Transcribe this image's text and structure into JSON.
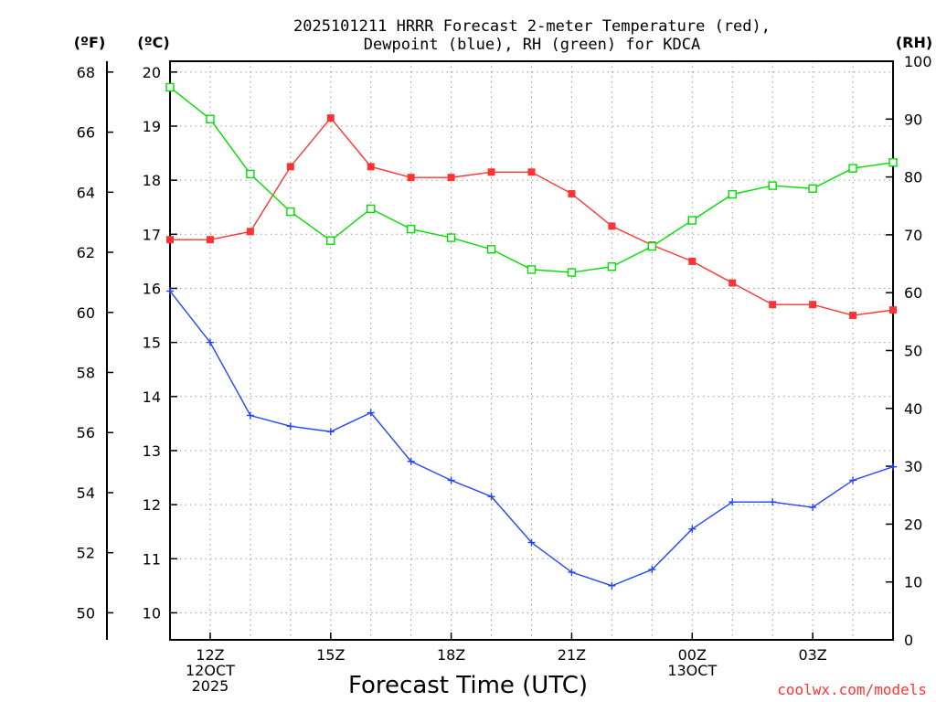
{
  "chart_data": {
    "type": "line",
    "title_line1": "2025101211 HRRR Forecast 2-meter Temperature (red),",
    "title_line2": "Dewpoint (blue), RH (green) for KDCA",
    "xlabel": "Forecast Time (UTC)",
    "credit": "coolwx.com/models",
    "axis_f_label": "(ºF)",
    "axis_c_label": "(ºC)",
    "axis_rh_label": "(RH)",
    "xlim": [
      11,
      29
    ],
    "c_lim": [
      9.5,
      20.2
    ],
    "rh_lim": [
      0,
      100
    ],
    "x_ticks": [
      {
        "x": 12,
        "lines": [
          "12Z",
          "12OCT",
          "2025"
        ]
      },
      {
        "x": 15,
        "lines": [
          "15Z"
        ]
      },
      {
        "x": 18,
        "lines": [
          "18Z"
        ]
      },
      {
        "x": 21,
        "lines": [
          "21Z"
        ]
      },
      {
        "x": 24,
        "lines": [
          "00Z",
          "13OCT"
        ]
      },
      {
        "x": 27,
        "lines": [
          "03Z"
        ]
      }
    ],
    "c_ticks": [
      "10",
      "11",
      "12",
      "13",
      "14",
      "15",
      "16",
      "17",
      "18",
      "19",
      "20"
    ],
    "f_ticks": [
      "50",
      "52",
      "54",
      "56",
      "58",
      "60",
      "62",
      "64",
      "66",
      "68"
    ],
    "rh_ticks": [
      "0",
      "10",
      "20",
      "30",
      "40",
      "50",
      "60",
      "70",
      "80",
      "90",
      "100"
    ],
    "x": [
      11,
      12,
      13,
      14,
      15,
      16,
      17,
      18,
      19,
      20,
      21,
      22,
      23,
      24,
      25,
      26,
      27,
      28,
      29
    ],
    "series": [
      {
        "name": "Temperature",
        "unit": "C",
        "color": "#ff3333",
        "marker": "filled-square",
        "values": [
          16.9,
          16.9,
          17.05,
          18.25,
          19.15,
          18.25,
          18.05,
          18.05,
          18.15,
          18.15,
          17.75,
          17.15,
          16.8,
          16.5,
          16.1,
          15.7,
          15.7,
          15.5,
          15.6
        ]
      },
      {
        "name": "Dewpoint",
        "unit": "C",
        "color": "#2244ff",
        "marker": "plus",
        "values": [
          15.95,
          15.0,
          13.65,
          13.45,
          13.35,
          13.7,
          12.8,
          12.45,
          12.15,
          11.3,
          10.75,
          10.5,
          10.8,
          11.55,
          12.05,
          12.05,
          11.95,
          12.45,
          12.7
        ]
      },
      {
        "name": "RH",
        "unit": "%",
        "color": "#00dd00",
        "marker": "open-square",
        "values": [
          95.5,
          90,
          80.5,
          74,
          69,
          74.5,
          71,
          69.5,
          67.5,
          64,
          63.5,
          64.5,
          68,
          72.5,
          77,
          78.5,
          78,
          81.5,
          82.5
        ]
      }
    ]
  }
}
